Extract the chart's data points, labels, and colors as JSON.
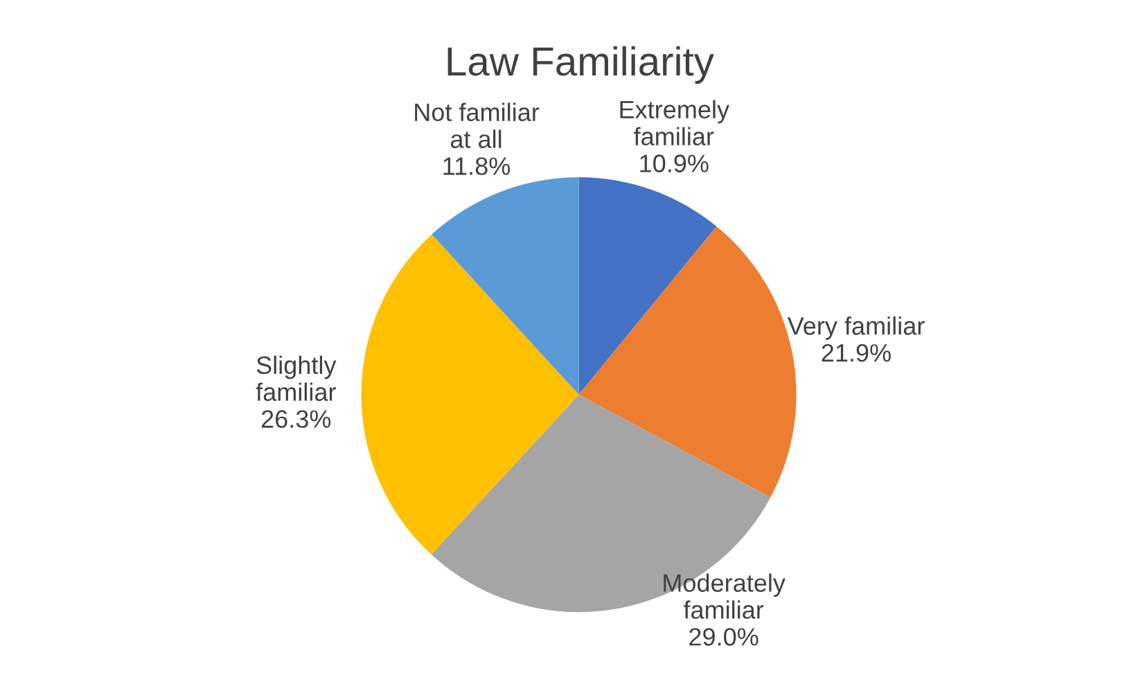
{
  "chart_data": {
    "type": "pie",
    "title": "Law Familiarity",
    "categories": [
      "Extremely\nfamiliar",
      "Very familiar",
      "Moderately\nfamiliar",
      "Slightly\nfamiliar",
      "Not familiar\nat all"
    ],
    "values": [
      10.9,
      21.9,
      29.0,
      26.3,
      11.8
    ],
    "colors": [
      "#4472c4",
      "#ed7d31",
      "#a5a5a5",
      "#ffc000",
      "#5b9bd5"
    ],
    "value_labels": [
      "10.9%",
      "21.9%",
      "29.0%",
      "26.3%",
      "11.8%"
    ]
  }
}
